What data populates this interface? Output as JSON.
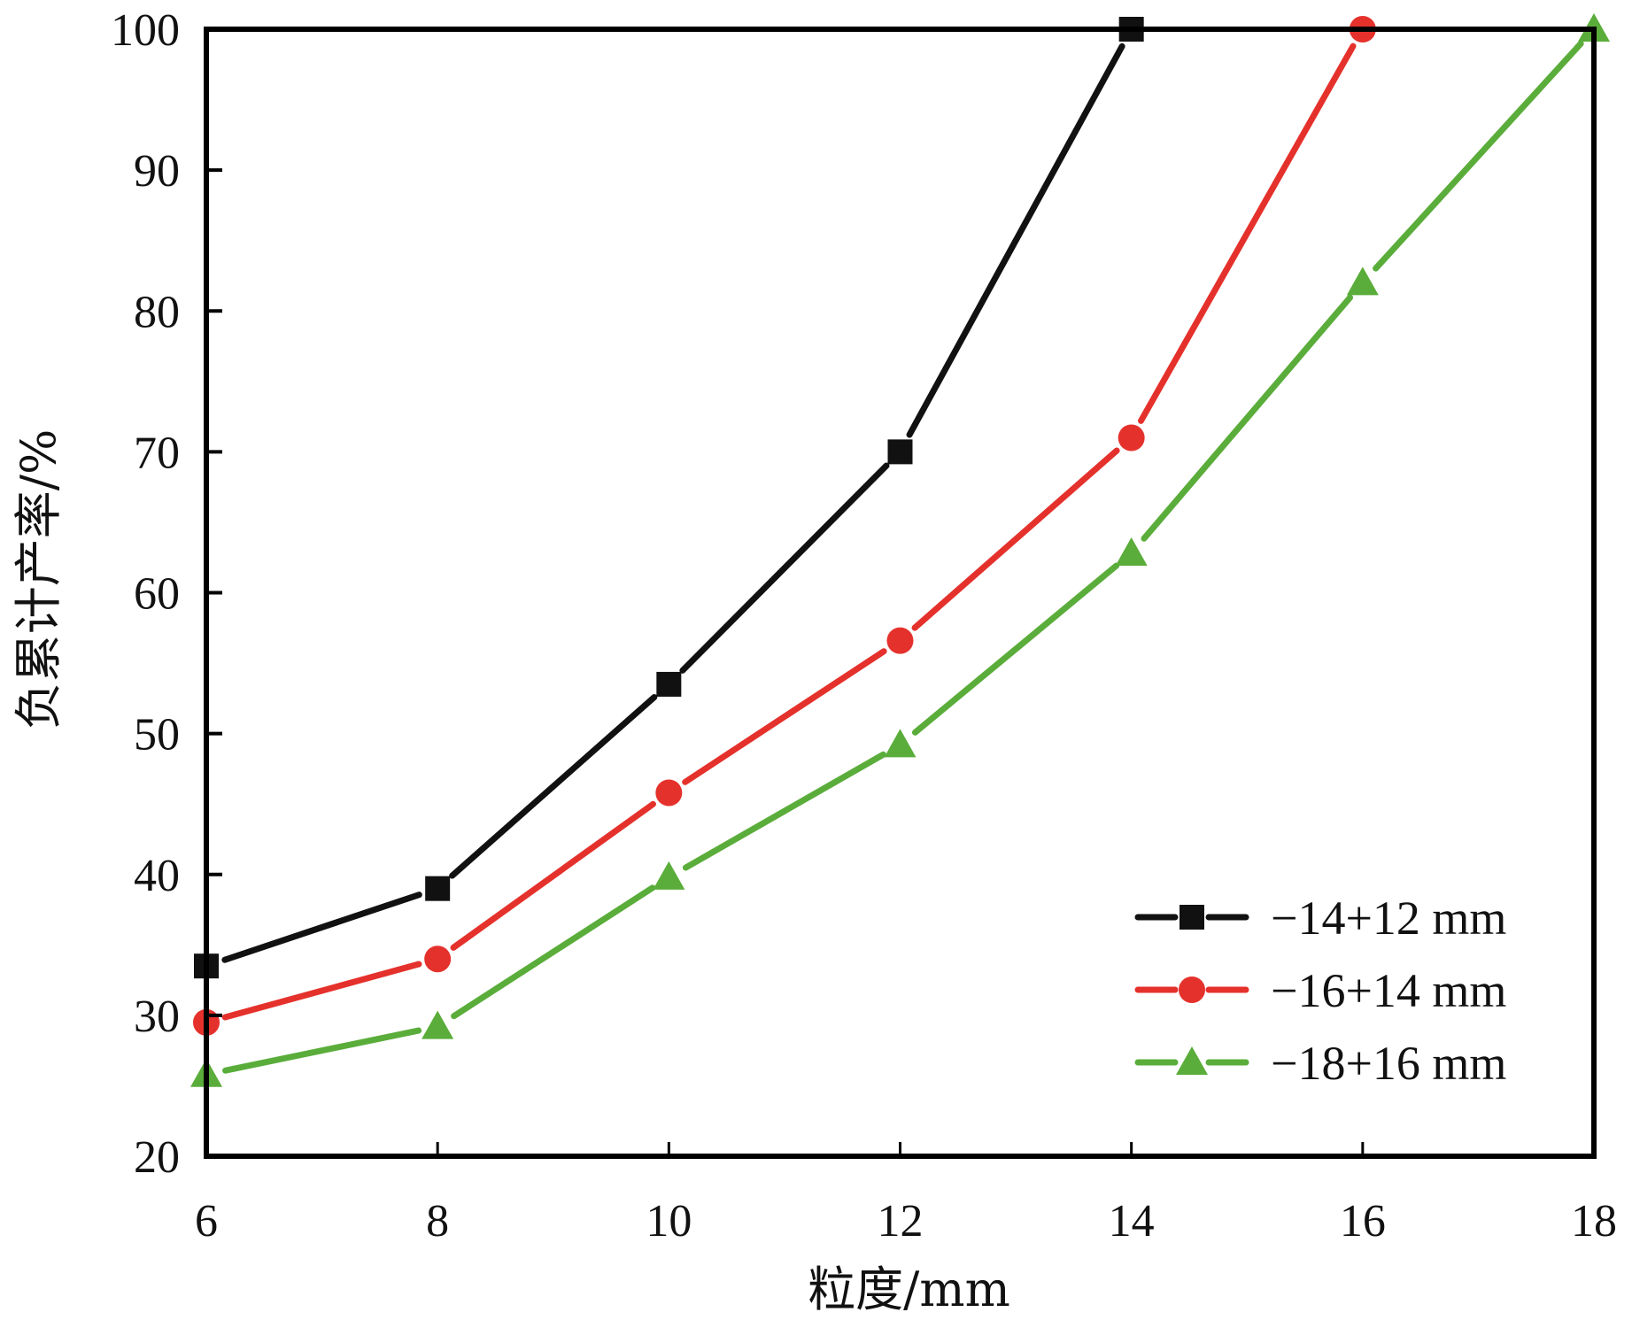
{
  "chart_data": {
    "type": "line",
    "title": "",
    "xlabel": "粒度/mm",
    "ylabel": "负累计产率/%",
    "xlim": [
      6,
      18
    ],
    "ylim": [
      20,
      100
    ],
    "xticks": [
      6,
      8,
      10,
      12,
      14,
      16,
      18
    ],
    "yticks": [
      20,
      30,
      40,
      50,
      60,
      70,
      80,
      90,
      100
    ],
    "xtick_labels": [
      "6",
      "8",
      "10",
      "12",
      "14",
      "16",
      "18"
    ],
    "ytick_labels": [
      "20",
      "30",
      "40",
      "50",
      "60",
      "70",
      "80",
      "90",
      "100"
    ],
    "grid": false,
    "legend_position": "bottom-right",
    "series": [
      {
        "name": "−14+12 mm",
        "color": "#111111",
        "marker": "square",
        "x": [
          6,
          8,
          10,
          12,
          14
        ],
        "y": [
          33.5,
          39,
          53.5,
          70,
          100
        ]
      },
      {
        "name": "−16+14 mm",
        "color": "#e5312c",
        "marker": "circle",
        "x": [
          6,
          8,
          10,
          12,
          14,
          16
        ],
        "y": [
          29.5,
          34,
          45.8,
          56.6,
          71,
          100
        ]
      },
      {
        "name": "−18+16 mm",
        "color": "#5aad3a",
        "marker": "triangle",
        "x": [
          6,
          8,
          10,
          12,
          14,
          16,
          18
        ],
        "y": [
          25.8,
          29.2,
          39.8,
          49.2,
          62.8,
          82,
          100
        ]
      }
    ]
  }
}
